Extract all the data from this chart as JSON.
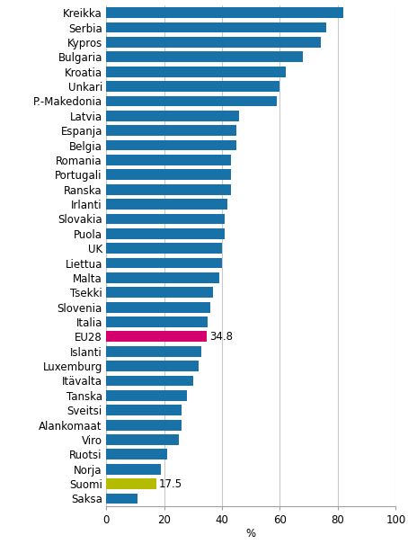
{
  "categories": [
    "Kreikka",
    "Serbia",
    "Kypros",
    "Bulgaria",
    "Kroatia",
    "Unkari",
    "P.-Makedonia",
    "Latvia",
    "Espanja",
    "Belgia",
    "Romania",
    "Portugali",
    "Ranska",
    "Irlanti",
    "Slovakia",
    "Puola",
    "UK",
    "Liettua",
    "Malta",
    "Tsekki",
    "Slovenia",
    "Italia",
    "EU28",
    "Islanti",
    "Luxemburg",
    "Itävalta",
    "Tanska",
    "Sveitsi",
    "Alankomaat",
    "Viro",
    "Ruotsi",
    "Norja",
    "Suomi",
    "Saksa"
  ],
  "values": [
    82,
    76,
    74,
    68,
    62,
    60,
    59,
    46,
    45,
    45,
    43,
    43,
    43,
    42,
    41,
    41,
    40,
    40,
    39,
    37,
    36,
    35,
    34.8,
    33,
    32,
    30,
    28,
    26,
    26,
    25,
    21,
    19,
    17.5,
    11
  ],
  "bar_colors": [
    "#1872a8",
    "#1872a8",
    "#1872a8",
    "#1872a8",
    "#1872a8",
    "#1872a8",
    "#1872a8",
    "#1872a8",
    "#1872a8",
    "#1872a8",
    "#1872a8",
    "#1872a8",
    "#1872a8",
    "#1872a8",
    "#1872a8",
    "#1872a8",
    "#1872a8",
    "#1872a8",
    "#1872a8",
    "#1872a8",
    "#1872a8",
    "#1872a8",
    "#d4006e",
    "#1872a8",
    "#1872a8",
    "#1872a8",
    "#1872a8",
    "#1872a8",
    "#1872a8",
    "#1872a8",
    "#1872a8",
    "#1872a8",
    "#b5bc00",
    "#1872a8"
  ],
  "annotations": [
    {
      "index": 22,
      "text": "34.8",
      "value": 34.8
    },
    {
      "index": 32,
      "text": "17.5",
      "value": 17.5
    }
  ],
  "xlabel": "%",
  "xlim": [
    0,
    100
  ],
  "xticks": [
    0,
    20,
    40,
    60,
    80,
    100
  ],
  "grid_color": "#c8c8c8",
  "background_color": "#ffffff",
  "bar_height": 0.72,
  "tick_fontsize": 8.5,
  "label_fontsize": 8.5
}
